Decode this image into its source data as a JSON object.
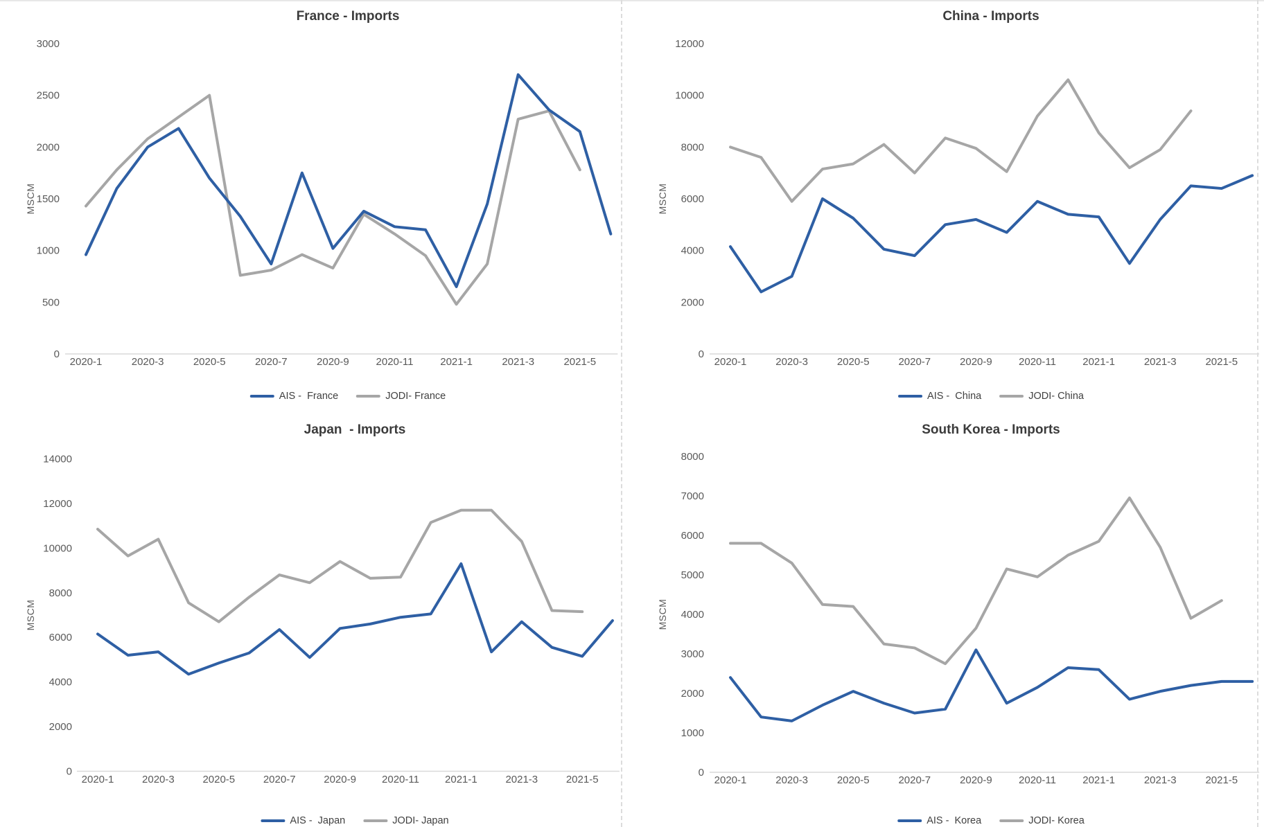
{
  "page": {
    "background": "#ffffff",
    "units_label": "MSCM"
  },
  "colors": {
    "ais_blue": "#2E5FA4",
    "jodi_gray": "#A6A6A6",
    "axis_line": "#D9D9D9",
    "tick_text": "#595959",
    "title_text": "#3B3B3B"
  },
  "chart_data": [
    {
      "type": "line",
      "title": "France - Imports",
      "ylabel": "MSCM",
      "xlabel": "",
      "grid": false,
      "legend_position": "bottom",
      "ylim": [
        0,
        3000
      ],
      "yticks": [
        0,
        500,
        1000,
        1500,
        2000,
        2500,
        3000
      ],
      "categories": [
        "2020-1",
        "2020-2",
        "2020-3",
        "2020-4",
        "2020-5",
        "2020-6",
        "2020-7",
        "2020-8",
        "2020-9",
        "2020-10",
        "2020-11",
        "2020-12",
        "2021-1",
        "2021-2",
        "2021-3",
        "2021-4",
        "2021-5",
        "2021-6"
      ],
      "xtick_labels": [
        "2020-1",
        "2020-3",
        "2020-5",
        "2020-7",
        "2020-9",
        "2020-11",
        "2021-1",
        "2021-3",
        "2021-5"
      ],
      "series": [
        {
          "name": "AIS -  France",
          "color": "#2E5FA4",
          "values": [
            960,
            1600,
            2000,
            2180,
            1700,
            1330,
            870,
            1750,
            1020,
            1380,
            1230,
            1200,
            650,
            1450,
            2700,
            2360,
            2150,
            1160
          ]
        },
        {
          "name": "JODI- France",
          "color": "#A6A6A6",
          "values": [
            1430,
            1780,
            2080,
            2290,
            2500,
            760,
            810,
            960,
            830,
            1350,
            1160,
            950,
            480,
            870,
            2270,
            2350,
            1780,
            null
          ]
        }
      ]
    },
    {
      "type": "line",
      "title": "China - Imports",
      "ylabel": "MSCM",
      "xlabel": "",
      "grid": false,
      "legend_position": "bottom",
      "ylim": [
        0,
        12000
      ],
      "yticks": [
        0,
        2000,
        4000,
        6000,
        8000,
        10000,
        12000
      ],
      "categories": [
        "2020-1",
        "2020-2",
        "2020-3",
        "2020-4",
        "2020-5",
        "2020-6",
        "2020-7",
        "2020-8",
        "2020-9",
        "2020-10",
        "2020-11",
        "2020-12",
        "2021-1",
        "2021-2",
        "2021-3",
        "2021-4",
        "2021-5",
        "2021-6"
      ],
      "xtick_labels": [
        "2020-1",
        "2020-3",
        "2020-5",
        "2020-7",
        "2020-9",
        "2020-11",
        "2021-1",
        "2021-3",
        "2021-5"
      ],
      "series": [
        {
          "name": "AIS -  China",
          "color": "#2E5FA4",
          "values": [
            4150,
            2400,
            3000,
            6000,
            5250,
            4050,
            3800,
            5000,
            5200,
            4700,
            5900,
            5400,
            5300,
            3500,
            5200,
            6500,
            6400,
            6900
          ]
        },
        {
          "name": "JODI- China",
          "color": "#A6A6A6",
          "values": [
            8000,
            7600,
            5900,
            7150,
            7350,
            8100,
            7000,
            8350,
            7950,
            7050,
            9200,
            10600,
            8550,
            7200,
            7900,
            9400,
            null,
            null
          ]
        }
      ]
    },
    {
      "type": "line",
      "title": "Japan  - Imports",
      "ylabel": "MSCM",
      "xlabel": "",
      "grid": false,
      "legend_position": "bottom",
      "ylim": [
        0,
        14000
      ],
      "yticks": [
        0,
        2000,
        4000,
        6000,
        8000,
        10000,
        12000,
        14000
      ],
      "categories": [
        "2020-1",
        "2020-2",
        "2020-3",
        "2020-4",
        "2020-5",
        "2020-6",
        "2020-7",
        "2020-8",
        "2020-9",
        "2020-10",
        "2020-11",
        "2020-12",
        "2021-1",
        "2021-2",
        "2021-3",
        "2021-4",
        "2021-5",
        "2021-6"
      ],
      "xtick_labels": [
        "2020-1",
        "2020-3",
        "2020-5",
        "2020-7",
        "2020-9",
        "2020-11",
        "2021-1",
        "2021-3",
        "2021-5"
      ],
      "series": [
        {
          "name": "AIS -  Japan",
          "color": "#2E5FA4",
          "values": [
            6150,
            5200,
            5350,
            4350,
            4850,
            5300,
            6350,
            5100,
            6400,
            6600,
            6900,
            7050,
            9300,
            5350,
            6700,
            5550,
            5150,
            6750
          ]
        },
        {
          "name": "JODI- Japan",
          "color": "#A6A6A6",
          "values": [
            10850,
            9650,
            10400,
            7550,
            6700,
            7800,
            8800,
            8450,
            9400,
            8650,
            8700,
            11150,
            11700,
            11700,
            10300,
            7200,
            7150,
            null
          ]
        }
      ]
    },
    {
      "type": "line",
      "title": "South Korea - Imports",
      "ylabel": "MSCM",
      "xlabel": "",
      "grid": false,
      "legend_position": "bottom",
      "ylim": [
        0,
        8000
      ],
      "yticks": [
        0,
        1000,
        2000,
        3000,
        4000,
        5000,
        6000,
        7000,
        8000
      ],
      "categories": [
        "2020-1",
        "2020-2",
        "2020-3",
        "2020-4",
        "2020-5",
        "2020-6",
        "2020-7",
        "2020-8",
        "2020-9",
        "2020-10",
        "2020-11",
        "2020-12",
        "2021-1",
        "2021-2",
        "2021-3",
        "2021-4",
        "2021-5",
        "2021-6"
      ],
      "xtick_labels": [
        "2020-1",
        "2020-3",
        "2020-5",
        "2020-7",
        "2020-9",
        "2020-11",
        "2021-1",
        "2021-3",
        "2021-5"
      ],
      "series": [
        {
          "name": "AIS -  Korea",
          "color": "#2E5FA4",
          "values": [
            2400,
            1400,
            1300,
            1700,
            2050,
            1750,
            1500,
            1600,
            3100,
            1750,
            2150,
            2650,
            2600,
            1850,
            2050,
            2200,
            2300,
            2300
          ]
        },
        {
          "name": "JODI- Korea",
          "color": "#A6A6A6",
          "values": [
            5800,
            5800,
            5300,
            4250,
            4200,
            3250,
            3150,
            2750,
            3650,
            5150,
            4950,
            5500,
            5850,
            6950,
            5700,
            3900,
            4350,
            null
          ]
        }
      ]
    }
  ]
}
